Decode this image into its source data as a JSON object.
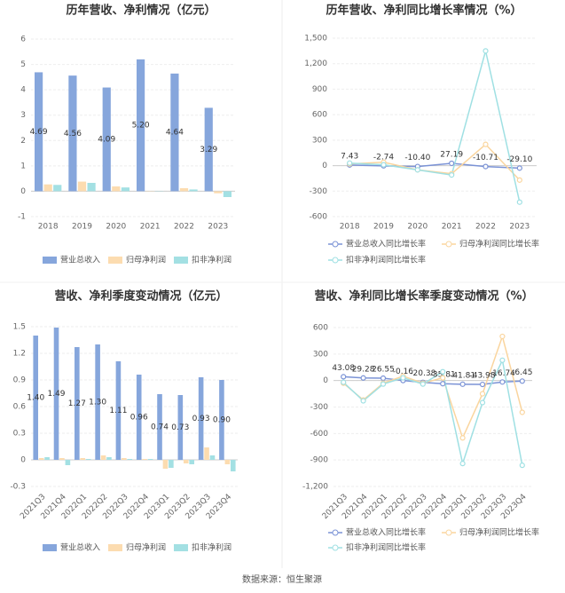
{
  "chart_data": [
    {
      "type": "bar",
      "title": "历年营收、净利情况（亿元）",
      "categories": [
        "2018",
        "2019",
        "2020",
        "2021",
        "2022",
        "2023"
      ],
      "series": [
        {
          "name": "营业总收入",
          "color": "#86a6dc",
          "values": [
            4.69,
            4.56,
            4.09,
            5.2,
            4.64,
            3.29
          ],
          "value_labels": [
            "4.69",
            "4.56",
            "4.09",
            "5.20",
            "4.64",
            "3.29"
          ]
        },
        {
          "name": "归母净利润",
          "color": "#fcdcb0",
          "values": [
            0.27,
            0.38,
            0.19,
            0.01,
            0.12,
            -0.08
          ]
        },
        {
          "name": "扣非净利润",
          "color": "#a3e0e3",
          "values": [
            0.25,
            0.33,
            0.15,
            -0.01,
            0.07,
            -0.23
          ]
        }
      ],
      "ylim": [
        -1,
        6
      ],
      "yticks": [
        -1,
        0,
        1,
        2,
        3,
        4,
        5,
        6
      ],
      "grid": true
    },
    {
      "type": "line",
      "title": "历年营收、净利同比增长率情况（%）",
      "categories": [
        "2018",
        "2019",
        "2020",
        "2021",
        "2022",
        "2023"
      ],
      "series": [
        {
          "name": "营业总收入同比增长率",
          "color": "#7b93d6",
          "values": [
            7.43,
            -2.74,
            -10.4,
            27.19,
            -10.71,
            -29.1
          ],
          "value_labels": [
            "7.43",
            "-2.74",
            "-10.40",
            "27.19",
            "-10.71",
            "-29.10"
          ]
        },
        {
          "name": "归母净利润同比增长率",
          "color": "#fad59e",
          "values": [
            20,
            40,
            -50,
            -95,
            250,
            -170
          ]
        },
        {
          "name": "扣非净利润同比增长率",
          "color": "#9fe0e3",
          "values": [
            30,
            10,
            -50,
            -110,
            1350,
            -430
          ]
        }
      ],
      "ylim": [
        -600,
        1500
      ],
      "yticks": [
        -600,
        -300,
        0,
        300,
        600,
        900,
        {
          "value": 1200,
          "label": "1,200"
        },
        {
          "value": 1500,
          "label": "1,500"
        }
      ],
      "grid": true
    },
    {
      "type": "bar",
      "title": "营收、净利季度变动情况（亿元）",
      "categories": [
        "2021Q3",
        "2021Q4",
        "2022Q1",
        "2022Q2",
        "2022Q3",
        "2022Q4",
        "2023Q1",
        "2023Q2",
        "2023Q3",
        "2023Q4"
      ],
      "series": [
        {
          "name": "营业总收入",
          "color": "#86a6dc",
          "values": [
            1.4,
            1.49,
            1.27,
            1.3,
            1.11,
            0.96,
            0.74,
            0.73,
            0.93,
            0.9
          ],
          "value_labels": [
            "1.40",
            "1.49",
            "1.27",
            "1.30",
            "1.11",
            "0.96",
            "0.74",
            "0.73",
            "0.93",
            "0.90"
          ]
        },
        {
          "name": "归母净利润",
          "color": "#fcdcb0",
          "values": [
            0.02,
            0.02,
            0.02,
            0.05,
            0.02,
            0.01,
            -0.1,
            -0.04,
            0.14,
            -0.05
          ]
        },
        {
          "name": "扣非净利润",
          "color": "#a3e0e3",
          "values": [
            0.03,
            -0.06,
            0.01,
            0.03,
            0.01,
            0.01,
            -0.09,
            -0.05,
            0.05,
            -0.13
          ]
        }
      ],
      "ylim": [
        -0.3,
        1.5
      ],
      "yticks": [
        -0.3,
        0,
        0.3,
        0.6,
        0.9,
        1.2,
        1.5
      ],
      "grid": true
    },
    {
      "type": "line",
      "title": "营收、净利同比增长率季度变动情况（%）",
      "categories": [
        "2021Q3",
        "2021Q4",
        "2022Q1",
        "2022Q2",
        "2022Q3",
        "2022Q4",
        "2023Q1",
        "2023Q2",
        "2023Q3",
        "2023Q4"
      ],
      "series": [
        {
          "name": "营业总收入同比增长率",
          "color": "#7b93d6",
          "values": [
            43.08,
            29.28,
            26.55,
            -0.16,
            -20.38,
            -35.81,
            -41.81,
            -43.98,
            -16.74,
            -6.45
          ]
        },
        {
          "name": "归母净利润同比增长率",
          "color": "#fad59e",
          "values": [
            -30,
            -220,
            -30,
            50,
            -30,
            30,
            -650,
            -150,
            500,
            -360
          ]
        },
        {
          "name": "扣非净利润同比增长率",
          "color": "#9fe0e3",
          "values": [
            -20,
            -230,
            -40,
            30,
            -40,
            100,
            -940,
            -250,
            230,
            -960
          ]
        }
      ],
      "ylim": [
        -1200,
        600
      ],
      "yticks": [
        {
          "value": -1200,
          "label": "-1,200"
        },
        -900,
        -600,
        -300,
        0,
        300,
        600
      ],
      "grid": true
    }
  ],
  "footer": {
    "source": "数据来源：恒生聚源"
  }
}
